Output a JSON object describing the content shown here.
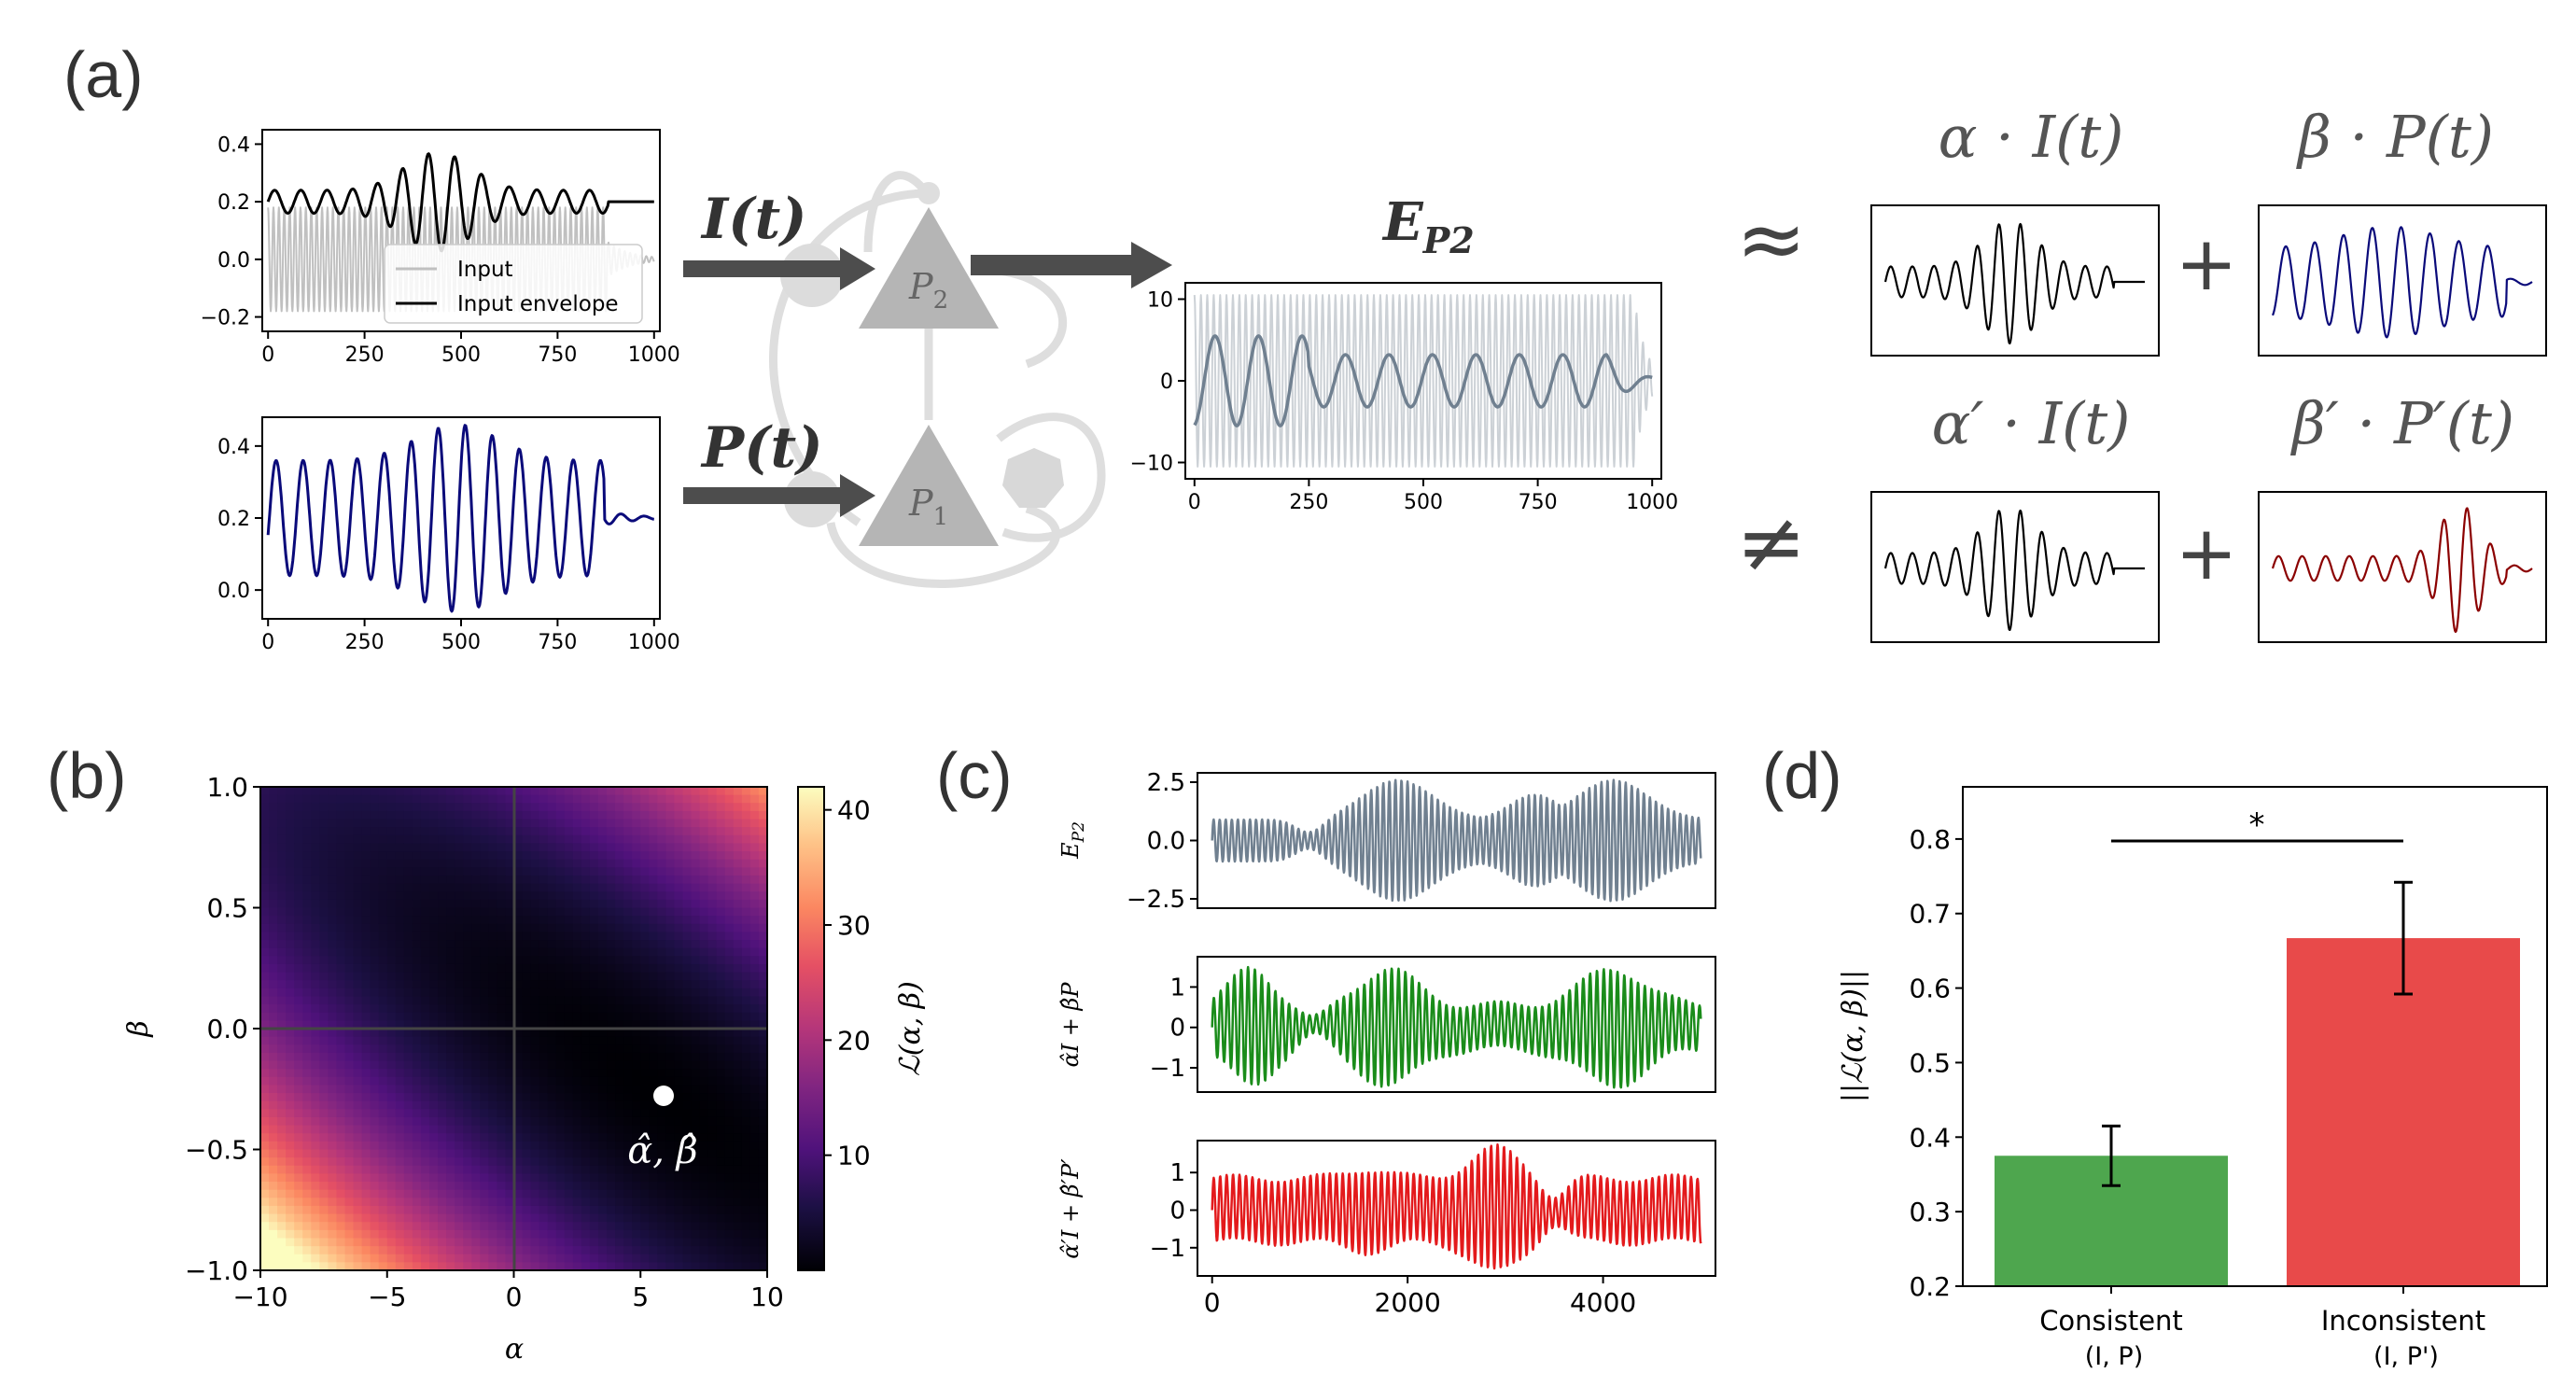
{
  "panel_labels": [
    "(a)",
    "(b)",
    "(c)",
    "(d)"
  ],
  "colors": {
    "input": "#c0c0c0",
    "envelope": "#000000",
    "p_signal": "#0a0a7a",
    "e_fill": "#ccd1d6",
    "e_line": "#708090",
    "p_prime": "#8b0000",
    "green": "#1a8c1a",
    "red": "#e31a1c",
    "bar_consistent": "#4ea64e",
    "bar_inconsistent": "#e84a4a",
    "circuit": "#dcdcdc",
    "neuron": "#b5b5b5"
  },
  "panel_a": {
    "input_label": "I(t)",
    "perturb_label": "P(t)",
    "neuron_top": "P",
    "neuron_top_sub": "2",
    "neuron_bottom": "P",
    "neuron_bottom_sub": "1",
    "output_label": "E",
    "output_sub": "P2",
    "approx_symbol": "≈",
    "neq_symbol": "≠",
    "plus_symbol": "+",
    "eq1_left": "α · I(t)",
    "eq1_right": "β · P(t)",
    "eq2_left": "α′ · I(t)",
    "eq2_right": "β′ · P′(t)",
    "legend": [
      "Input",
      "Input envelope"
    ]
  },
  "chart_data": [
    {
      "id": "a_input",
      "type": "line",
      "series": [
        {
          "name": "Input"
        },
        {
          "name": "Input envelope"
        }
      ],
      "xlim": [
        0,
        1000
      ],
      "ylim": [
        -0.25,
        0.45
      ],
      "xticks": [
        0,
        250,
        500,
        750,
        1000
      ],
      "xtick_labels": [
        "0",
        "250",
        "500",
        "750",
        "1000"
      ],
      "yticks": [
        -0.2,
        0.0,
        0.2,
        0.4
      ],
      "ytick_labels": [
        "−0.2",
        "0.0",
        "0.2",
        "0.4"
      ],
      "legend_position": "lower-right"
    },
    {
      "id": "a_perturb",
      "type": "line",
      "xlim": [
        0,
        1000
      ],
      "ylim": [
        -0.08,
        0.48
      ],
      "xticks": [
        0,
        250,
        500,
        750,
        1000
      ],
      "xtick_labels": [
        "0",
        "250",
        "500",
        "750",
        "1000"
      ],
      "yticks": [
        0.0,
        0.2,
        0.4
      ],
      "ytick_labels": [
        "0.0",
        "0.2",
        "0.4"
      ]
    },
    {
      "id": "a_output",
      "type": "line",
      "xlim": [
        0,
        1000
      ],
      "ylim": [
        -12,
        12
      ],
      "xticks": [
        0,
        250,
        500,
        750,
        1000
      ],
      "xtick_labels": [
        "0",
        "250",
        "500",
        "750",
        "1000"
      ],
      "yticks": [
        -10,
        0,
        10
      ],
      "ytick_labels": [
        "−10",
        "0",
        "10"
      ]
    },
    {
      "id": "b_heatmap",
      "type": "heatmap",
      "xlabel": "α",
      "ylabel": "β",
      "xlim": [
        -10,
        10
      ],
      "ylim": [
        -1,
        1
      ],
      "xticks": [
        -10,
        -5,
        0,
        5,
        10
      ],
      "xtick_labels": [
        "−10",
        "−5",
        "0",
        "5",
        "10"
      ],
      "yticks": [
        -1.0,
        -0.5,
        0.0,
        0.5,
        1.0
      ],
      "ytick_labels": [
        "−1.0",
        "−0.5",
        "0.0",
        "0.5",
        "1.0"
      ],
      "colorbar_label": "ℒ(α, β)",
      "colorbar_range": [
        0,
        42
      ],
      "colorbar_ticks": [
        10,
        20,
        30,
        40
      ],
      "optimum": {
        "alpha": 5.8,
        "beta": -0.28,
        "label": "α̂, β̂"
      }
    },
    {
      "id": "c_traces",
      "type": "line",
      "xlim": [
        -150,
        5150
      ],
      "xticks": [
        0,
        2000,
        4000
      ],
      "xtick_labels": [
        "0",
        "2000",
        "4000"
      ],
      "rows": [
        {
          "ylabel": "E_P2",
          "ylim": [
            -2.9,
            2.9
          ],
          "yticks": [
            -2.5,
            0.0,
            2.5
          ],
          "ytick_labels": [
            "−2.5",
            "0.0",
            "2.5"
          ]
        },
        {
          "ylabel": "α̂I + β̂P",
          "ylim": [
            -1.6,
            1.75
          ],
          "yticks": [
            -1,
            0,
            1
          ],
          "ytick_labels": [
            "−1",
            "0",
            "1"
          ]
        },
        {
          "ylabel": "α̂′I + β̂′P′",
          "ylim": [
            -1.75,
            1.85
          ],
          "yticks": [
            -1,
            0,
            1
          ],
          "ytick_labels": [
            "−1",
            "0",
            "1"
          ]
        }
      ]
    },
    {
      "id": "d_bars",
      "type": "bar",
      "categories": [
        "Consistent",
        "Inconsistent"
      ],
      "category_sub": [
        "(I, P)",
        "(I, P')"
      ],
      "values": [
        0.375,
        0.667
      ],
      "errors": [
        0.04,
        0.075
      ],
      "ylabel": "||ℒ(α, β)||",
      "ylim": [
        0.2,
        0.87
      ],
      "yticks": [
        0.2,
        0.3,
        0.4,
        0.5,
        0.6,
        0.7,
        0.8
      ],
      "ytick_labels": [
        "0.2",
        "0.3",
        "0.4",
        "0.5",
        "0.6",
        "0.7",
        "0.8"
      ],
      "significance": "*"
    }
  ]
}
